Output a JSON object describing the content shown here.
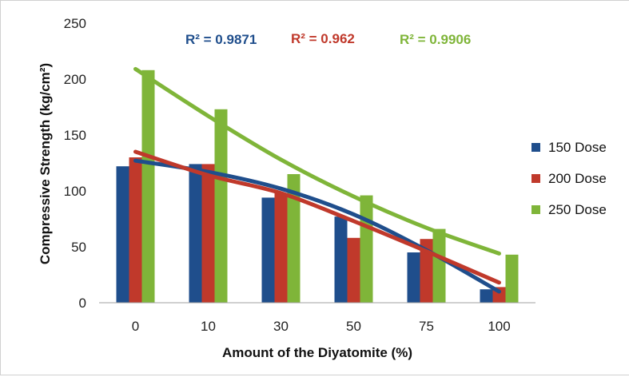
{
  "chart_data": {
    "type": "bar",
    "xlabel": "Amount of the Diyatomite  (%)",
    "ylabel": "Compressive Strength (kg/cm²)",
    "ylim": [
      0,
      250
    ],
    "yticks": [
      0,
      50,
      100,
      150,
      200,
      250
    ],
    "categories": [
      "0",
      "10",
      "30",
      "50",
      "75",
      "100"
    ],
    "series": [
      {
        "name": "150 Dose",
        "color": "#1f4e8c",
        "values": [
          122,
          124,
          94,
          77,
          45,
          12
        ]
      },
      {
        "name": "200 Dose",
        "color": "#c0392b",
        "values": [
          130,
          124,
          98,
          58,
          57,
          14
        ]
      },
      {
        "name": "250 Dose",
        "color": "#7fb539",
        "values": [
          208,
          173,
          115,
          96,
          66,
          43
        ]
      }
    ],
    "trendlines": [
      {
        "series": "150 Dose",
        "color": "#1f4e8c",
        "values": [
          127,
          117,
          102,
          79,
          47,
          10
        ]
      },
      {
        "series": "200 Dose",
        "color": "#c0392b",
        "values": [
          135,
          114,
          98,
          73,
          46,
          18
        ]
      },
      {
        "series": "250 Dose",
        "color": "#7fb539",
        "values": [
          209,
          167,
          128,
          95,
          67,
          44
        ]
      }
    ],
    "annotations": [
      {
        "label": "R² = 0.9871",
        "color": "#1f4e8c"
      },
      {
        "label": "R² = 0.962",
        "color": "#c0392b"
      },
      {
        "label": "R² = 0.9906",
        "color": "#7fb539"
      }
    ],
    "legend_position": "right",
    "grid": false
  }
}
